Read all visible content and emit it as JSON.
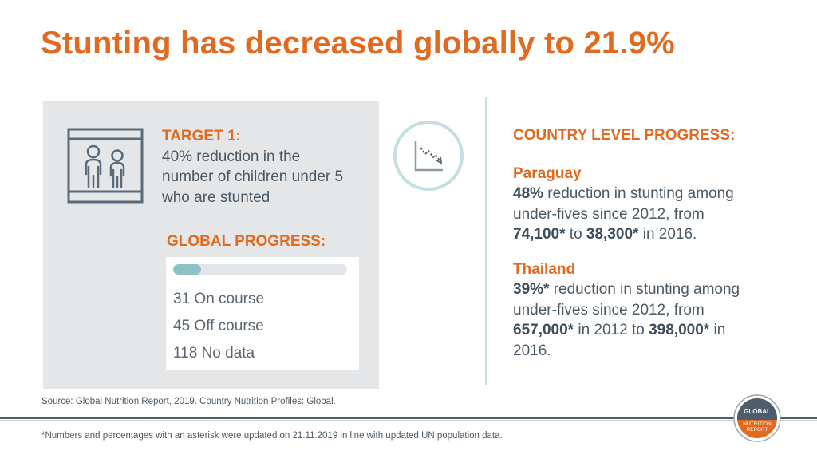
{
  "title": "Stunting has decreased globally to 21.9%",
  "target": {
    "heading": "TARGET 1:",
    "text": "40% reduction in the number of children under 5 who are stunted"
  },
  "global_progress": {
    "heading": "GLOBAL PROGRESS:",
    "on_course_fraction": 0.16,
    "stats": [
      "31 On course",
      "45 Off course",
      "118 No data"
    ]
  },
  "country_progress": {
    "heading": "COUNTRY LEVEL PROGRESS:",
    "countries": [
      {
        "name": "Paraguay",
        "segments": [
          {
            "text": "48%",
            "bold": true
          },
          {
            "text": " reduction in stunting among under-fives since 2012, from ",
            "bold": false
          },
          {
            "text": "74,100*",
            "bold": true
          },
          {
            "text": " to ",
            "bold": false
          },
          {
            "text": "38,300*",
            "bold": true
          },
          {
            "text": " in 2016.",
            "bold": false
          }
        ]
      },
      {
        "name": "Thailand",
        "segments": [
          {
            "text": "39%*",
            "bold": true
          },
          {
            "text": " reduction in stunting among under-fives since 2012, from ",
            "bold": false
          },
          {
            "text": "657,000*",
            "bold": true
          },
          {
            "text": " in 2012 to ",
            "bold": false
          },
          {
            "text": "398,000*",
            "bold": true
          },
          {
            "text": " in 2016.",
            "bold": false
          }
        ]
      }
    ]
  },
  "source": "Source: Global Nutrition Report, 2019. Country Nutrition Profiles: Global.",
  "footnote": "*Numbers and percentages with an asterisk were updated on 21.11.2019 in line with updated UN population data.",
  "logo": {
    "line1": "GLOBAL",
    "line2": "NUTRITION",
    "line3": "REPORT"
  },
  "colors": {
    "accent": "#e06a1f",
    "text": "#4a5966",
    "teal": "#8dc1c4",
    "panel": "#e4e6e8"
  },
  "icons": [
    "children-icon",
    "trend-down-icon",
    "global-nutrition-report-logo"
  ]
}
